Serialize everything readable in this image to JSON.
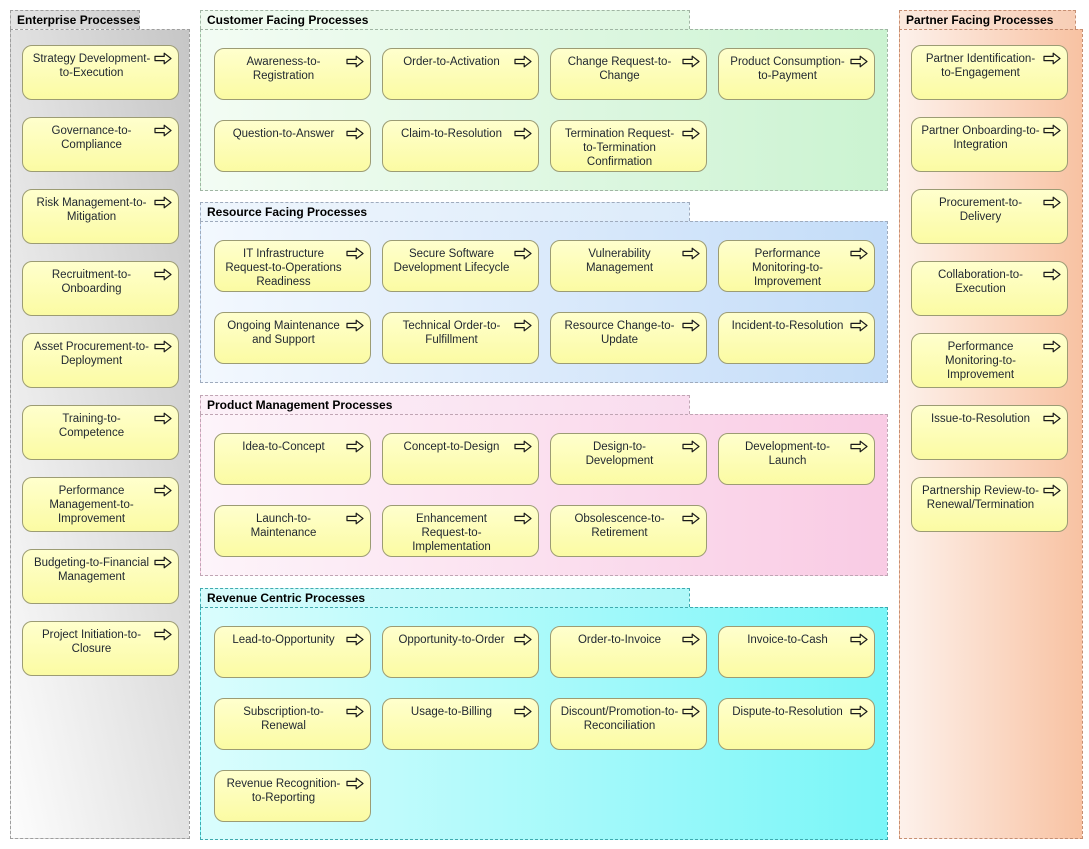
{
  "palette": {
    "box_fill_top": "#ffffcd",
    "box_fill_bottom": "#fbfba3",
    "box_border": "#9c9c74",
    "box_text": "#1f2630",
    "tab_text": "#000000",
    "groups": {
      "enterprise": {
        "start": "#c6c6c6",
        "end": "#fdfdfd",
        "tab_start": "#e4e4e4",
        "tab_end": "#cfcfcf",
        "border": "#9e9e9e"
      },
      "customer": {
        "start": "#f3fcf4",
        "end": "#cbf3d1",
        "tab_start": "#f0fbf0",
        "tab_end": "#ddf6e0",
        "border": "#a0b5a3"
      },
      "resource": {
        "start": "#f3f8fe",
        "end": "#c3dcf8",
        "tab_start": "#eff6fd",
        "tab_end": "#dcebfa",
        "border": "#9fabbd"
      },
      "product": {
        "start": "#fdf4fa",
        "end": "#f9cbe4",
        "tab_start": "#fcf1f8",
        "tab_end": "#f9dcee",
        "border": "#c0a5b4"
      },
      "revenue": {
        "start": "#dafdfd",
        "end": "#79f6f8",
        "tab_start": "#d8fcfc",
        "tab_end": "#aef8f9",
        "border": "#3fa9ae"
      },
      "partner": {
        "start": "#fdf1eb",
        "end": "#f8c2a2",
        "tab_start": "#fbe9dd",
        "tab_end": "#f7ceb6",
        "border": "#c68e72"
      }
    }
  },
  "icons": {
    "process_arrow": "rightwards-open-arrow"
  },
  "groups": {
    "enterprise": {
      "title": "Enterprise Processes",
      "items": [
        "Strategy Development-to-Execution",
        "Governance-to-Compliance",
        "Risk Management-to-Mitigation",
        "Recruitment-to-Onboarding",
        "Asset Procurement-to-Deployment",
        "Training-to-Competence",
        "Performance Management-to-Improvement",
        "Budgeting-to-Financial Management",
        "Project Initiation-to-Closure"
      ]
    },
    "customer": {
      "title": "Customer Facing Processes",
      "items": [
        "Awareness-to-Registration",
        "Order-to-Activation",
        "Change Request-to-Change",
        "Product Consumption-to-Payment",
        "Question-to-Answer",
        "Claim-to-Resolution",
        "Termination Request-to-Termination Confirmation"
      ]
    },
    "resource": {
      "title": "Resource Facing Processes",
      "items": [
        "IT Infrastructure Request-to-Operations Readiness",
        "Secure Software Development Lifecycle",
        "Vulnerability Management",
        "Performance Monitoring-to-Improvement",
        "Ongoing Maintenance and Support",
        "Technical Order-to-Fulfillment",
        "Resource Change-to-Update",
        "Incident-to-Resolution"
      ]
    },
    "product": {
      "title": "Product Management Processes",
      "items": [
        "Idea-to-Concept",
        "Concept-to-Design",
        "Design-to-Development",
        "Development-to-Launch",
        "Launch-to-Maintenance",
        "Enhancement Request-to-Implementation",
        "Obsolescence-to-Retirement"
      ]
    },
    "revenue": {
      "title": "Revenue Centric Processes",
      "items": [
        "Lead-to-Opportunity",
        "Opportunity-to-Order",
        "Order-to-Invoice",
        "Invoice-to-Cash",
        "Subscription-to-Renewal",
        "Usage-to-Billing",
        "Discount/Promotion-to-Reconciliation",
        "Dispute-to-Resolution",
        "Revenue Recognition-to-Reporting"
      ]
    },
    "partner": {
      "title": "Partner Facing Processes",
      "items": [
        "Partner Identification-to-Engagement",
        "Partner Onboarding-to-Integration",
        "Procurement-to-Delivery",
        "Collaboration-to-Execution",
        "Performance Monitoring-to-Improvement",
        "Issue-to-Resolution",
        "Partnership Review-to-Renewal/Termination"
      ]
    }
  }
}
